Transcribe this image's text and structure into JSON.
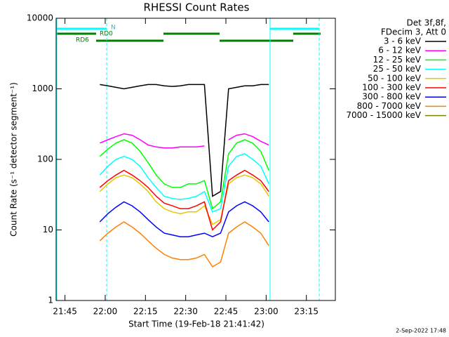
{
  "chart_data": {
    "type": "line",
    "title": "RHESSI Count Rates",
    "xlabel": "Start Time (19-Feb-18 21:41:42)",
    "ylabel": "Count Rate (s⁻¹ detector segment⁻¹)",
    "legend_header": [
      "Det 3f,8f,",
      "FDecim 3, Att 0"
    ],
    "annotations": [
      "N",
      "RD0",
      "RD6"
    ],
    "footer": "2-Sep-2022 17:48",
    "ylog": true,
    "xlim": [
      1301.7,
      1405.8
    ],
    "ylim": [
      1,
      10000
    ],
    "xticks": [
      {
        "value": 1305,
        "label": "21:45"
      },
      {
        "value": 1320,
        "label": "22:00"
      },
      {
        "value": 1335,
        "label": "22:15"
      },
      {
        "value": 1350,
        "label": "22:30"
      },
      {
        "value": 1365,
        "label": "22:45"
      },
      {
        "value": 1380,
        "label": "23:00"
      },
      {
        "value": 1395,
        "label": "23:15"
      }
    ],
    "yticks": [
      1,
      10,
      100,
      1000,
      10000
    ],
    "x": [
      1318,
      1321,
      1324,
      1327,
      1330,
      1333,
      1336,
      1339,
      1342,
      1345,
      1348,
      1351,
      1354,
      1357,
      1360,
      1363,
      1366,
      1369,
      1372,
      1375,
      1378,
      1381
    ],
    "series": [
      {
        "name": "3 - 6 keV",
        "color": "#000000",
        "values": [
          1150,
          1100,
          1050,
          1000,
          1050,
          1100,
          1150,
          1150,
          1100,
          1080,
          1100,
          1150,
          1150,
          1150,
          30,
          35,
          1000,
          1050,
          1100,
          1100,
          1150,
          1150
        ]
      },
      {
        "name": "6 - 12 keV",
        "color": "#ff00ff",
        "values": [
          170,
          190,
          210,
          230,
          220,
          190,
          160,
          150,
          145,
          145,
          150,
          150,
          150,
          155,
          null,
          null,
          190,
          220,
          230,
          210,
          180,
          160
        ]
      },
      {
        "name": "12 - 25 keV",
        "color": "#00ff00",
        "values": [
          110,
          140,
          170,
          190,
          170,
          130,
          90,
          60,
          45,
          40,
          40,
          45,
          45,
          50,
          20,
          25,
          120,
          170,
          190,
          170,
          130,
          70
        ]
      },
      {
        "name": "25 - 50 keV",
        "color": "#00ffff",
        "values": [
          60,
          80,
          100,
          110,
          100,
          80,
          55,
          40,
          30,
          28,
          27,
          28,
          30,
          35,
          18,
          20,
          80,
          110,
          120,
          100,
          80,
          45
        ]
      },
      {
        "name": "50 - 100 keV",
        "color": "#e6c800",
        "values": [
          35,
          45,
          55,
          60,
          55,
          45,
          35,
          25,
          20,
          18,
          17,
          18,
          18,
          22,
          12,
          14,
          45,
          55,
          60,
          55,
          45,
          30
        ]
      },
      {
        "name": "100 - 300 keV",
        "color": "#ff0000",
        "values": [
          40,
          50,
          60,
          70,
          60,
          50,
          40,
          30,
          24,
          22,
          20,
          20,
          22,
          25,
          10,
          13,
          50,
          60,
          70,
          60,
          50,
          35
        ]
      },
      {
        "name": "300 - 800 keV",
        "color": "#0000ff",
        "values": [
          13,
          17,
          21,
          25,
          22,
          18,
          14,
          11,
          9,
          8.5,
          8,
          8,
          8.5,
          9,
          8,
          9,
          18,
          22,
          25,
          22,
          18,
          13
        ]
      },
      {
        "name": "800 - 7000 keV",
        "color": "#ff8000",
        "values": [
          7,
          9,
          11,
          13,
          11,
          9,
          7,
          5.5,
          4.5,
          4,
          3.8,
          3.8,
          4,
          4.5,
          3,
          3.5,
          9,
          11,
          13,
          11,
          9,
          6
        ]
      },
      {
        "name": "7000 - 15000 keV",
        "color": "#808000",
        "values": [
          null,
          null,
          null,
          null,
          null,
          null,
          null,
          null,
          null,
          null,
          null,
          null,
          null,
          null,
          null,
          null,
          null,
          null,
          null,
          null,
          null,
          null
        ]
      }
    ]
  }
}
